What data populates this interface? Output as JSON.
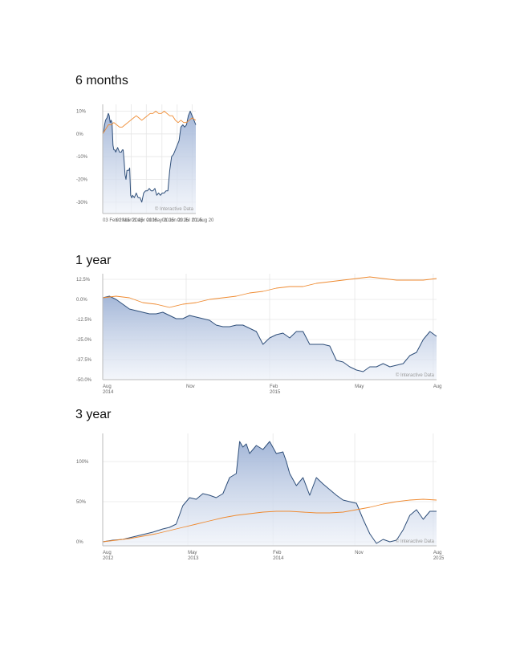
{
  "credit": "© Interactive Data",
  "colors": {
    "fund_line": "#2f4f7a",
    "fund_fill_top": "#9fb3d6",
    "fund_fill_bottom": "#eef2f9",
    "benchmark_line": "#ef8a30",
    "grid": "#e6e6e6",
    "axis": "#bbbbbb"
  },
  "chart_data": [
    {
      "type": "area",
      "title": "6 months",
      "ylim": [
        -35,
        13
      ],
      "yticks": [
        10,
        0,
        -10,
        -20,
        -30
      ],
      "ytick_labels": [
        "10%",
        "0%",
        "-10%",
        "-20%",
        "-30%"
      ],
      "xticks": [
        0,
        0.144,
        0.306,
        0.468,
        0.636,
        0.8,
        0.96
      ],
      "xtick_labels": [
        [
          "03 Feb 2015"
        ],
        [
          "01 Mar 2015"
        ],
        [
          "01 Apr 2015"
        ],
        [
          "01 May 2015"
        ],
        [
          "01 Jun 2015"
        ],
        [
          "01 Jul 2015"
        ],
        [
          "01 Aug 20"
        ]
      ],
      "series": [
        {
          "role": "fund",
          "x": [
            0,
            0.01,
            0.02,
            0.03,
            0.045,
            0.06,
            0.07,
            0.08,
            0.09,
            0.1,
            0.11,
            0.12,
            0.13,
            0.14,
            0.16,
            0.18,
            0.2,
            0.21,
            0.22,
            0.23,
            0.24,
            0.25,
            0.26,
            0.27,
            0.28,
            0.29,
            0.3,
            0.31,
            0.315,
            0.32,
            0.34,
            0.36,
            0.38,
            0.4,
            0.42,
            0.44,
            0.46,
            0.48,
            0.5,
            0.52,
            0.54,
            0.56,
            0.58,
            0.6,
            0.62,
            0.64,
            0.66,
            0.68,
            0.7,
            0.72,
            0.74,
            0.76,
            0.78,
            0.8,
            0.82,
            0.84,
            0.86,
            0.88,
            0.9,
            0.92,
            0.94,
            0.96,
            0.98,
            1.0
          ],
          "y": [
            0,
            1,
            4,
            6,
            7,
            9,
            8,
            5,
            6,
            5,
            -5,
            -7,
            -7,
            -8,
            -6,
            -8,
            -8,
            -7,
            -7,
            -12,
            -18,
            -20,
            -16,
            -16,
            -16,
            -15,
            -27,
            -28,
            -28,
            -27,
            -28,
            -26,
            -28,
            -28,
            -30,
            -26,
            -25,
            -25,
            -24,
            -25,
            -25,
            -24,
            -27,
            -26,
            -27,
            -26,
            -26,
            -25,
            -25,
            -16,
            -10,
            -9,
            -7,
            -5,
            -3,
            3,
            4,
            3,
            4,
            8,
            10,
            8,
            6,
            4
          ]
        },
        {
          "role": "benchmark",
          "x": [
            0,
            0.03,
            0.06,
            0.09,
            0.12,
            0.15,
            0.18,
            0.21,
            0.24,
            0.27,
            0.3,
            0.33,
            0.36,
            0.39,
            0.42,
            0.45,
            0.48,
            0.51,
            0.54,
            0.57,
            0.6,
            0.63,
            0.66,
            0.69,
            0.72,
            0.75,
            0.78,
            0.81,
            0.84,
            0.87,
            0.9,
            0.93,
            0.96,
            1.0
          ],
          "y": [
            0,
            2,
            4,
            4,
            5,
            4,
            3,
            3,
            4,
            5,
            6,
            7,
            8,
            7,
            6,
            7,
            8,
            9,
            9,
            10,
            9,
            9,
            10,
            9,
            8,
            8,
            6,
            5,
            6,
            5,
            5,
            6,
            7,
            6
          ]
        }
      ]
    },
    {
      "type": "area",
      "title": "1 year",
      "ylim": [
        -50,
        16
      ],
      "yticks": [
        12.5,
        0,
        -12.5,
        -25,
        -37.5,
        -50
      ],
      "ytick_labels": [
        "12.5%",
        "0.0%",
        "-12.5%",
        "-25.0%",
        "-37.5%",
        "-50.0%"
      ],
      "xticks": [
        0,
        0.25,
        0.5,
        0.755,
        0.99
      ],
      "xtick_labels": [
        [
          "Aug",
          "2014"
        ],
        [
          "Nov",
          ""
        ],
        [
          "Feb",
          "2015"
        ],
        [
          "May",
          ""
        ],
        [
          "Aug",
          ""
        ]
      ],
      "series": [
        {
          "role": "fund",
          "x": [
            0,
            0.02,
            0.04,
            0.06,
            0.08,
            0.1,
            0.12,
            0.14,
            0.16,
            0.18,
            0.2,
            0.22,
            0.24,
            0.26,
            0.28,
            0.3,
            0.32,
            0.34,
            0.36,
            0.38,
            0.4,
            0.42,
            0.44,
            0.46,
            0.48,
            0.5,
            0.52,
            0.54,
            0.56,
            0.58,
            0.6,
            0.62,
            0.64,
            0.66,
            0.68,
            0.7,
            0.72,
            0.74,
            0.76,
            0.78,
            0.8,
            0.82,
            0.84,
            0.86,
            0.88,
            0.9,
            0.92,
            0.94,
            0.96,
            0.98,
            1.0
          ],
          "y": [
            1,
            2,
            0,
            -3,
            -6,
            -7,
            -8,
            -9,
            -9,
            -8,
            -10,
            -12,
            -12,
            -10,
            -11,
            -12,
            -13,
            -16,
            -17,
            -17,
            -16,
            -16,
            -18,
            -20,
            -28,
            -24,
            -22,
            -21,
            -24,
            -20,
            -20,
            -28,
            -28,
            -28,
            -29,
            -38,
            -39,
            -42,
            -44,
            -45,
            -42,
            -42,
            -40,
            -42,
            -41,
            -40,
            -35,
            -33,
            -25,
            -20,
            -23
          ]
        },
        {
          "role": "benchmark",
          "x": [
            0,
            0.04,
            0.08,
            0.12,
            0.16,
            0.2,
            0.24,
            0.28,
            0.32,
            0.36,
            0.4,
            0.44,
            0.48,
            0.52,
            0.56,
            0.6,
            0.64,
            0.68,
            0.72,
            0.76,
            0.8,
            0.84,
            0.88,
            0.92,
            0.96,
            1.0
          ],
          "y": [
            1,
            2,
            1,
            -2,
            -3,
            -5,
            -3,
            -2,
            0,
            1,
            2,
            4,
            5,
            7,
            8,
            8,
            10,
            11,
            12,
            13,
            14,
            13,
            12,
            12,
            12,
            13
          ]
        }
      ]
    },
    {
      "type": "area",
      "title": "3 year",
      "ylim": [
        -5,
        135
      ],
      "yticks": [
        100,
        50,
        0
      ],
      "ytick_labels": [
        "100%",
        "50%",
        "0%"
      ],
      "xticks": [
        0,
        0.255,
        0.51,
        0.755,
        0.99
      ],
      "xtick_labels": [
        [
          "Aug",
          "2012"
        ],
        [
          "May",
          "2013"
        ],
        [
          "Feb",
          "2014"
        ],
        [
          "Nov",
          ""
        ],
        [
          "Aug",
          "2015"
        ]
      ],
      "series": [
        {
          "role": "fund",
          "x": [
            0,
            0.03,
            0.06,
            0.09,
            0.12,
            0.15,
            0.18,
            0.2,
            0.22,
            0.24,
            0.26,
            0.28,
            0.3,
            0.32,
            0.34,
            0.36,
            0.38,
            0.4,
            0.41,
            0.42,
            0.43,
            0.44,
            0.46,
            0.48,
            0.5,
            0.52,
            0.54,
            0.55,
            0.56,
            0.58,
            0.6,
            0.62,
            0.64,
            0.66,
            0.68,
            0.7,
            0.72,
            0.74,
            0.76,
            0.78,
            0.8,
            0.82,
            0.84,
            0.86,
            0.88,
            0.9,
            0.92,
            0.94,
            0.96,
            0.98,
            1.0
          ],
          "y": [
            0,
            2,
            3,
            6,
            9,
            12,
            16,
            18,
            22,
            45,
            55,
            53,
            60,
            58,
            55,
            60,
            80,
            85,
            125,
            118,
            122,
            110,
            120,
            115,
            125,
            110,
            112,
            100,
            85,
            70,
            80,
            58,
            80,
            72,
            65,
            58,
            52,
            50,
            48,
            28,
            10,
            -2,
            3,
            0,
            2,
            15,
            33,
            40,
            28,
            38,
            38
          ]
        },
        {
          "role": "benchmark",
          "x": [
            0,
            0.04,
            0.08,
            0.12,
            0.16,
            0.2,
            0.24,
            0.28,
            0.32,
            0.36,
            0.4,
            0.44,
            0.48,
            0.52,
            0.56,
            0.6,
            0.64,
            0.68,
            0.72,
            0.76,
            0.8,
            0.84,
            0.88,
            0.92,
            0.96,
            1.0
          ],
          "y": [
            0,
            2,
            4,
            7,
            10,
            14,
            18,
            22,
            26,
            30,
            33,
            35,
            37,
            38,
            38,
            37,
            36,
            36,
            37,
            40,
            43,
            47,
            50,
            52,
            53,
            52
          ]
        }
      ]
    }
  ]
}
